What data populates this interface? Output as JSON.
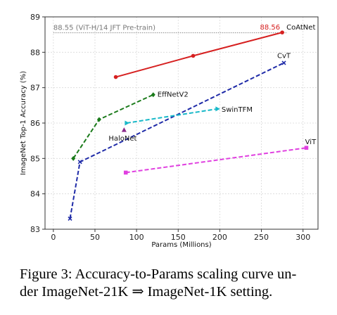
{
  "chart_data": {
    "type": "line",
    "xlabel": "Params (Millions)",
    "ylabel": "ImageNet Top-1 Accuracy (%)",
    "xlim": [
      -10,
      318
    ],
    "ylim": [
      83,
      89
    ],
    "x_ticks": [
      0,
      50,
      100,
      150,
      200,
      250,
      300
    ],
    "y_ticks": [
      83,
      84,
      85,
      86,
      87,
      88,
      89
    ],
    "grid": true,
    "legend": "none (inline series labels)",
    "reference_line": {
      "y": 88.55,
      "label": "88.55 (ViT-H/14 JFT Pre-train)",
      "color": "#888888"
    },
    "series": [
      {
        "name": "CoAtNet",
        "color": "#d62020",
        "marker": "circle",
        "dash": "solid",
        "x": [
          75,
          168,
          275
        ],
        "y": [
          87.3,
          87.9,
          88.56
        ],
        "value_label": "88.56"
      },
      {
        "name": "CvT",
        "color": "#1f2ba8",
        "marker": "x",
        "dash": "dashed",
        "x": [
          20,
          32,
          277
        ],
        "y": [
          83.3,
          84.9,
          87.7
        ]
      },
      {
        "name": "EffNetV2",
        "color": "#1a7a1a",
        "marker": "diamond",
        "dash": "dashed",
        "x": [
          24,
          55,
          120
        ],
        "y": [
          85.0,
          86.1,
          86.8
        ]
      },
      {
        "name": "SwinTFM",
        "color": "#17b8c8",
        "marker": "triangle-right",
        "dash": "dashed",
        "x": [
          88,
          197
        ],
        "y": [
          86.0,
          86.4
        ]
      },
      {
        "name": "HaloNet",
        "color": "#8b2a8b",
        "marker": "triangle-up",
        "dash": "none",
        "x": [
          85
        ],
        "y": [
          85.8
        ]
      },
      {
        "name": "ViT",
        "color": "#e040e0",
        "marker": "square",
        "dash": "dashed",
        "x": [
          87,
          304
        ],
        "y": [
          84.6,
          85.3
        ]
      }
    ]
  },
  "caption": {
    "line1": "Figure 3: Accuracy-to-Params scaling curve un-",
    "line2": "der ImageNet-21K ⇒ ImageNet-1K setting."
  }
}
